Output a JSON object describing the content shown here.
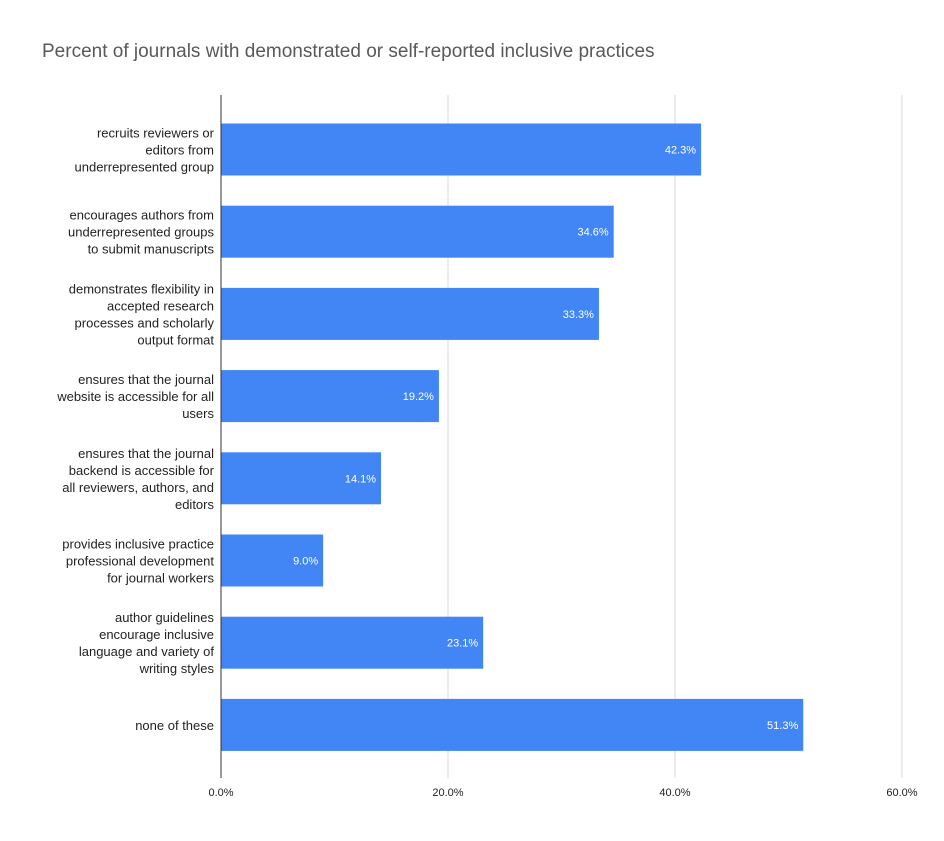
{
  "chart_data": {
    "type": "bar",
    "orientation": "horizontal",
    "title": "Percent of journals with demonstrated or self-reported inclusive practices",
    "xlabel": "",
    "ylabel": "",
    "xlim": [
      0,
      60
    ],
    "x_ticks": [
      0,
      20,
      40,
      60
    ],
    "x_tick_labels": [
      "0.0%",
      "20.0%",
      "40.0%",
      "60.0%"
    ],
    "grid": "vertical",
    "bar_color": "#4285f4",
    "categories": [
      [
        "recruits reviewers or",
        "editors from",
        "underrepresented group"
      ],
      [
        "encourages authors from",
        "underrepresented groups",
        "to submit manuscripts"
      ],
      [
        "demonstrates flexibility in",
        "accepted research",
        "processes and scholarly",
        "output format"
      ],
      [
        "ensures that the journal",
        "website is accessible for all",
        "users"
      ],
      [
        "ensures that the journal",
        "backend is accessible for",
        "all reviewers, authors, and",
        "editors"
      ],
      [
        "provides inclusive practice",
        "professional development",
        "for journal workers"
      ],
      [
        "author guidelines",
        "encourage inclusive",
        "language and variety of",
        "writing styles"
      ],
      [
        "none of these"
      ]
    ],
    "values": [
      42.3,
      34.6,
      33.3,
      19.2,
      14.1,
      9.0,
      23.1,
      51.3
    ],
    "data_labels": [
      "42.3%",
      "34.6%",
      "33.3%",
      "19.2%",
      "14.1%",
      "9.0%",
      "23.1%",
      "51.3%"
    ]
  }
}
